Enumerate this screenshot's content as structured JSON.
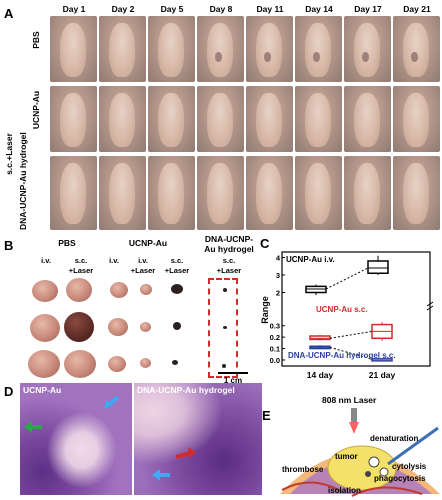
{
  "panelA": {
    "label": "A",
    "days": [
      "Day 1",
      "Day 2",
      "Day 5",
      "Day 8",
      "Day 11",
      "Day 14",
      "Day 17",
      "Day 21"
    ],
    "side_label": "s.c.+Laser",
    "rows": [
      {
        "label": "PBS"
      },
      {
        "label": "UCNP-Au"
      },
      {
        "label": "DNA-UCNP-Au hydrogel"
      }
    ]
  },
  "panelB": {
    "label": "B",
    "groups": [
      {
        "title": "PBS",
        "cols": [
          "i.v.",
          "s.c. +Laser"
        ]
      },
      {
        "title": "UCNP-Au",
        "cols": [
          "i.v.",
          "i.v. +Laser",
          "s.c. +Laser"
        ]
      },
      {
        "title": "DNA-UCNP- Au hydrogel",
        "cols": [
          "s.c. +Laser"
        ]
      }
    ],
    "scalebar": "1 cm"
  },
  "panelC": {
    "label": "C",
    "chart_data": {
      "type": "box",
      "ylabel": "Range",
      "categories": [
        "14 day",
        "21 day"
      ],
      "series": [
        {
          "name": "UCNP-Au i.v.",
          "color": "#000000",
          "boxes": [
            {
              "min": 1.85,
              "q1": 2.0,
              "median": 2.2,
              "q3": 2.35,
              "max": 2.45
            },
            {
              "min": 3.0,
              "q1": 3.1,
              "median": 3.4,
              "q3": 3.8,
              "max": 4.1
            }
          ]
        },
        {
          "name": "UCNP-Au s.c.",
          "color": "#d12b2b",
          "boxes": [
            {
              "min": 0.17,
              "q1": 0.18,
              "median": 0.19,
              "q3": 0.21,
              "max": 0.22
            },
            {
              "min": 0.17,
              "q1": 0.19,
              "median": 0.25,
              "q3": 0.31,
              "max": 0.33
            }
          ]
        },
        {
          "name": "DNA-UCNP-Au hydrogel s.c.",
          "color": "#2a3d9e",
          "boxes": [
            {
              "min": 0.095,
              "q1": 0.1,
              "median": 0.11,
              "q3": 0.12,
              "max": 0.13
            },
            {
              "min": 0.004,
              "q1": 0.006,
              "median": 0.008,
              "q3": 0.01,
              "max": 0.012
            }
          ]
        }
      ],
      "y_ticks_lower": [
        "0.0",
        "0.1",
        "0.2",
        "0.3"
      ],
      "y_ticks_upper": [
        "2",
        "3",
        "4"
      ],
      "axis_break": true
    }
  },
  "panelD": {
    "label": "D",
    "left_title": "UCNP-Au",
    "right_title": "DNA-UCNP-Au hydrogel",
    "arrow_colors": {
      "green": "#2ba84a",
      "blue": "#3fa9f5",
      "red": "#d22b2b"
    }
  },
  "panelE": {
    "label": "E",
    "laser": "808 nm Laser",
    "labels": {
      "tumor": "tumor",
      "denaturation": "denaturation",
      "thrombose": "thrombose",
      "cytolysis": "cytolysis",
      "phagocytosis": "phagocytosis",
      "isolation": "isolation"
    }
  }
}
